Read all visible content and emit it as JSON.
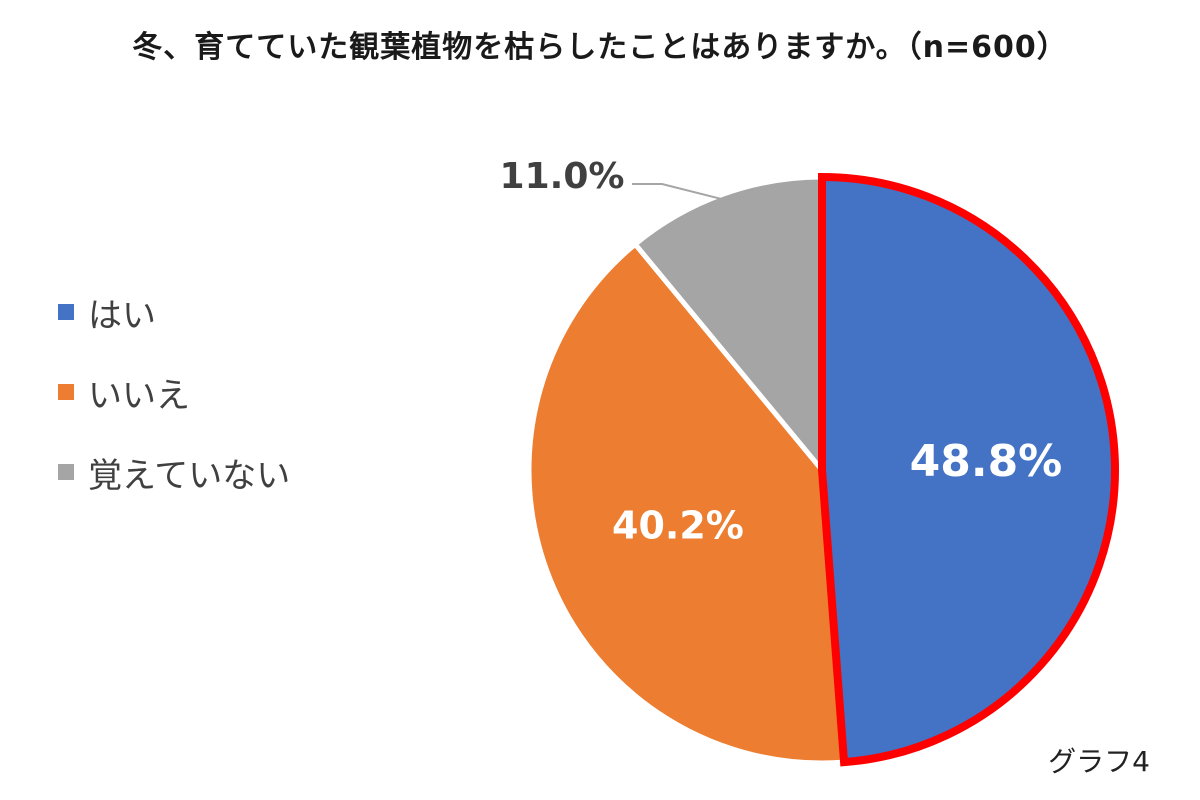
{
  "chart_data": {
    "type": "pie",
    "title": "冬、育てていた観葉植物を枯らしたことはありますか。（n=600）",
    "categories": [
      "はい",
      "いいえ",
      "覚えていない"
    ],
    "values": [
      48.8,
      40.2,
      11.0
    ],
    "data_labels": [
      "48.8%",
      "40.2%",
      "11.0%"
    ],
    "colors": [
      "#4472C4",
      "#ED7D31",
      "#A5A5A5"
    ],
    "highlight_color": "#FF0000",
    "highlighted_category": "はい",
    "legend_position": "left"
  },
  "caption": "グラフ4"
}
